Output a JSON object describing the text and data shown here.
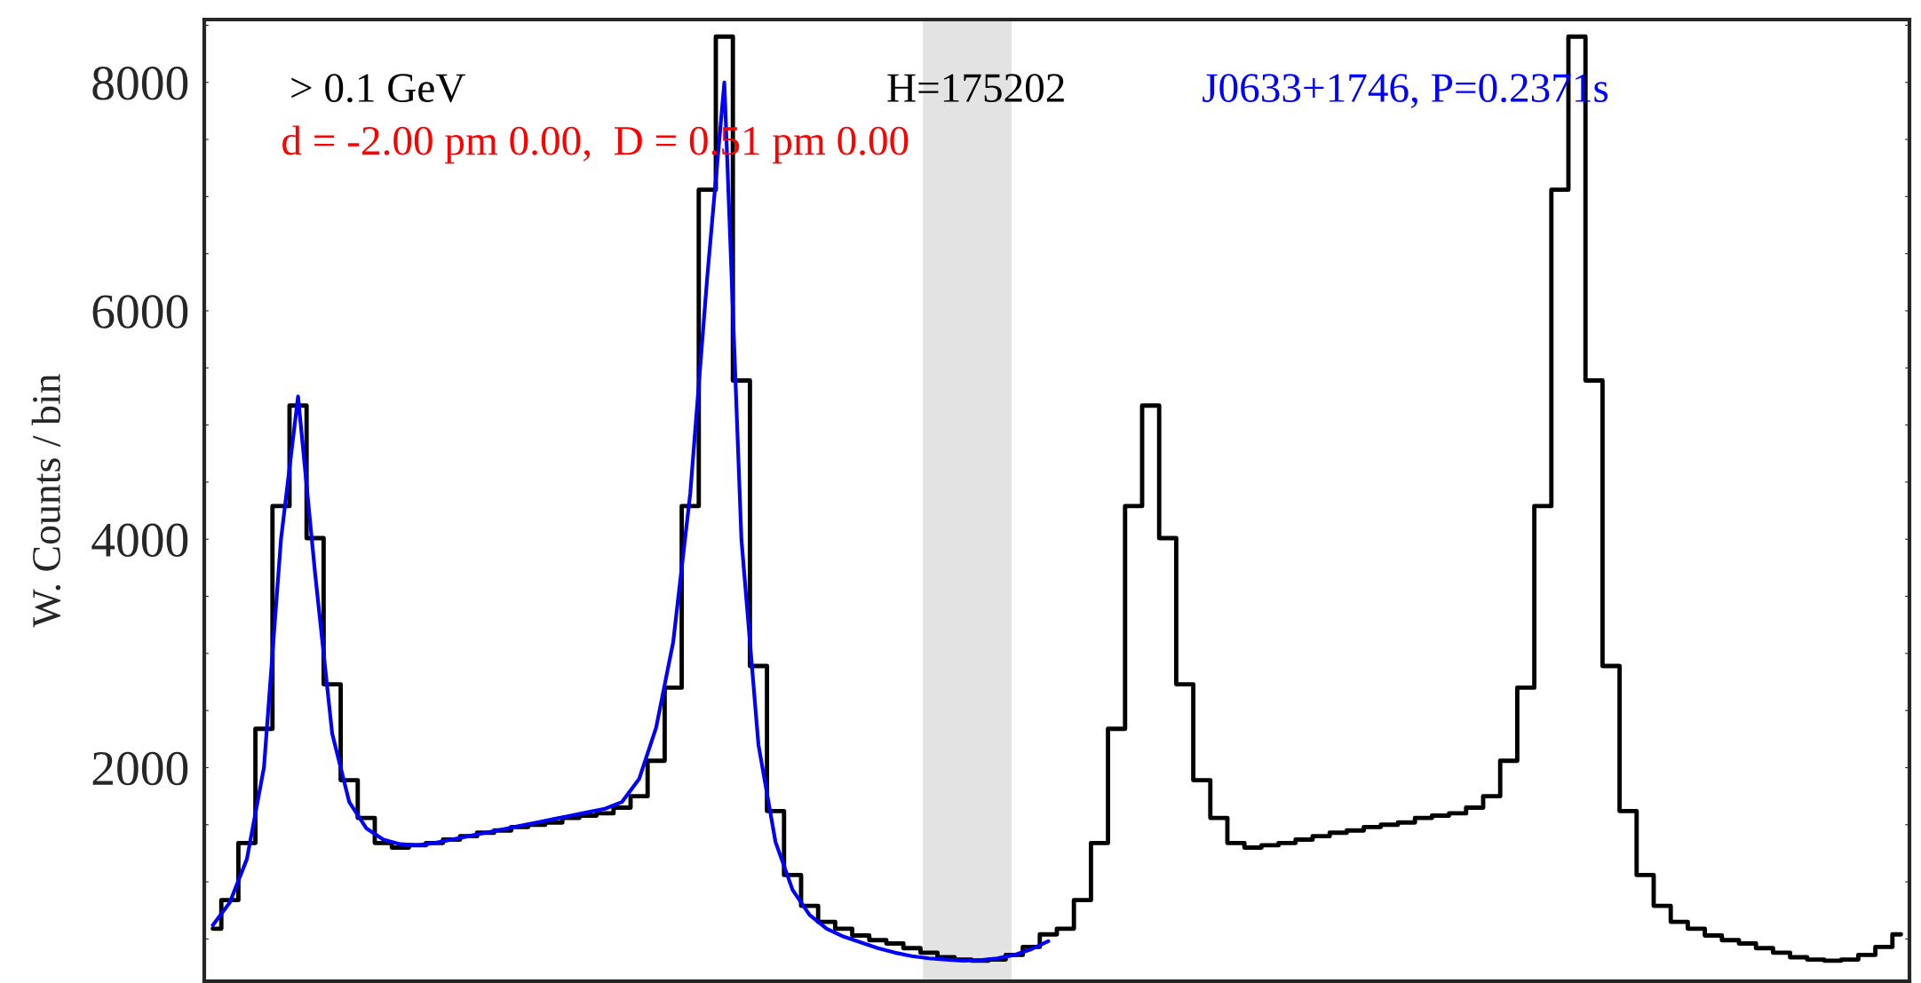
{
  "chart_data": {
    "type": "step",
    "ylabel": "W. Counts / bin",
    "categories": [
      null,
      null,
      null,
      null,
      null,
      null,
      null,
      null,
      null,
      null,
      null,
      null,
      null,
      null,
      null,
      null,
      null,
      null,
      null,
      null,
      null,
      null,
      null,
      null,
      null,
      null,
      null,
      null,
      null,
      null,
      null,
      null,
      null,
      null,
      null,
      null,
      null,
      null,
      null,
      null,
      null,
      null,
      null,
      null,
      null,
      null,
      null,
      null,
      null,
      null,
      null,
      null,
      null,
      null,
      null,
      null,
      null,
      null,
      null,
      null,
      null,
      null,
      null,
      null,
      null,
      null,
      null,
      null,
      null,
      null,
      null,
      null,
      null,
      null,
      null,
      null,
      null,
      null,
      null,
      null,
      null,
      null,
      null,
      null,
      null,
      null,
      null,
      null,
      null,
      null,
      null,
      null,
      null,
      null,
      null,
      null,
      null,
      null,
      null,
      null
    ],
    "series": [
      {
        "color": "#000000",
        "values": [
          590,
          840,
          1340,
          2340,
          4290,
          5170,
          4010,
          2730,
          1890,
          1560,
          1340,
          1300,
          1320,
          1340,
          1370,
          1400,
          1430,
          1450,
          1480,
          1500,
          1520,
          1560,
          1580,
          1600,
          1650,
          1750,
          2060,
          2700,
          4290,
          7060,
          8400,
          5390,
          2890,
          1620,
          1060,
          790,
          650,
          590,
          530,
          490,
          460,
          420,
          380,
          340,
          320,
          310,
          320,
          360,
          430,
          540,
          590,
          840,
          1340,
          2340,
          4290,
          5170,
          4010,
          2730,
          1890,
          1560,
          1340,
          1300,
          1320,
          1340,
          1370,
          1400,
          1430,
          1450,
          1480,
          1500,
          1520,
          1560,
          1580,
          1600,
          1650,
          1750,
          2060,
          2700,
          4290,
          7060,
          8400,
          5390,
          2890,
          1620,
          1060,
          790,
          650,
          590,
          530,
          490,
          460,
          420,
          380,
          340,
          320,
          310,
          320,
          360,
          430,
          540
        ]
      },
      {
        "type": "line",
        "color": "#0000ff",
        "values": [
          620,
          820,
          1200,
          2000,
          4000,
          5250,
          3700,
          2300,
          1700,
          1470,
          1370,
          1330,
          1320,
          1340,
          1370,
          1400,
          1430,
          1460,
          1490,
          1520,
          1550,
          1580,
          1610,
          1640,
          1700,
          1900,
          2350,
          3100,
          4400,
          6300,
          8000,
          4000,
          2200,
          1350,
          930,
          710,
          590,
          520,
          470,
          420,
          380,
          350,
          330,
          320,
          310,
          315,
          330,
          360,
          410,
          480,
          null,
          null,
          null,
          null,
          null,
          null,
          null,
          null,
          null,
          null,
          null,
          null,
          null,
          null,
          null,
          null,
          null,
          null,
          null,
          null,
          null,
          null,
          null,
          null,
          null,
          null,
          null,
          null,
          null,
          null,
          null,
          null,
          null,
          null,
          null,
          null,
          null,
          null,
          null,
          null,
          null,
          null,
          null,
          null,
          null,
          null,
          null,
          null,
          null,
          null
        ]
      }
    ],
    "ylim": [
      130,
      8550
    ],
    "yticks": [
      {
        "value": 500,
        "label": null
      },
      2000,
      {
        "value": 1000,
        "label": null
      },
      {
        "value": 1500,
        "label": null
      },
      {
        "value": 2500,
        "label": null
      },
      {
        "value": 3000,
        "label": null
      },
      {
        "value": 3500,
        "label": null
      },
      4000,
      {
        "value": 4500,
        "label": null
      },
      {
        "value": 5000,
        "label": null
      },
      {
        "value": 5500,
        "label": null
      },
      6000,
      {
        "value": 6500,
        "label": null
      },
      {
        "value": 7000,
        "label": null
      },
      {
        "value": 7500,
        "label": null
      },
      8000,
      {
        "value": 8500,
        "label": null
      }
    ],
    "annotations": [
      "> 0.1 GeV",
      "d = -2.00 pm 0.00,  D = 0.51 pm 0.00",
      "H=175202",
      "J0633+1746, P=0.2371s"
    ],
    "grid": false,
    "legend": false
  }
}
